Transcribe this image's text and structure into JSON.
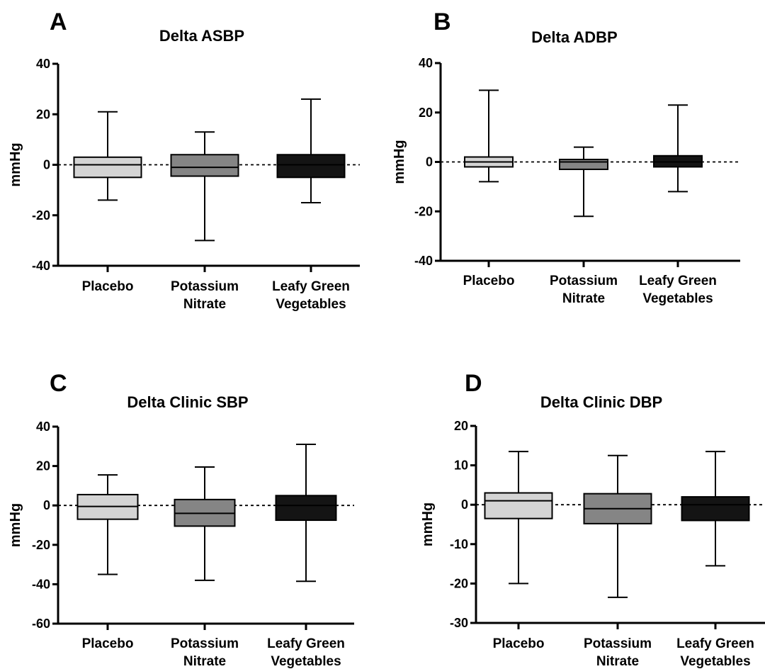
{
  "chart_data": [
    {
      "type": "box",
      "panel": "A",
      "title": "Delta ASBP",
      "ylabel": "mmHg",
      "ylim": [
        -40,
        40
      ],
      "yticks": [
        -40,
        -20,
        0,
        20,
        40
      ],
      "categories": [
        [
          "Placebo"
        ],
        [
          "Potassium",
          "Nitrate"
        ],
        [
          "Leafy Green",
          "Vegetables"
        ]
      ],
      "series": [
        {
          "min": -14,
          "q1": -5,
          "median": 0,
          "q3": 3,
          "max": 21,
          "color": "#d4d4d4"
        },
        {
          "min": -30,
          "q1": -4.5,
          "median": -1,
          "q3": 4,
          "max": 13,
          "color": "#858585"
        },
        {
          "min": -15,
          "q1": -5,
          "median": 0,
          "q3": 4,
          "max": 26,
          "color": "#141414"
        }
      ]
    },
    {
      "type": "box",
      "panel": "B",
      "title": "Delta ADBP",
      "ylabel": "mmHg",
      "ylim": [
        -40,
        40
      ],
      "yticks": [
        -40,
        -20,
        0,
        20,
        40
      ],
      "categories": [
        [
          "Placebo"
        ],
        [
          "Potassium",
          "Nitrate"
        ],
        [
          "Leafy Green",
          "Vegetables"
        ]
      ],
      "series": [
        {
          "min": -8,
          "q1": -2,
          "median": 0,
          "q3": 2,
          "max": 29,
          "color": "#d4d4d4"
        },
        {
          "min": -22,
          "q1": -3,
          "median": 0,
          "q3": 1,
          "max": 6,
          "color": "#858585"
        },
        {
          "min": -12,
          "q1": -2,
          "median": 0,
          "q3": 2.5,
          "max": 23,
          "color": "#141414"
        }
      ]
    },
    {
      "type": "box",
      "panel": "C",
      "title": "Delta Clinic SBP",
      "ylabel": "mmHg",
      "ylim": [
        -60,
        40
      ],
      "yticks": [
        -60,
        -40,
        -20,
        0,
        20,
        40
      ],
      "categories": [
        [
          "Placebo"
        ],
        [
          "Potassium",
          "Nitrate"
        ],
        [
          "Leafy Green",
          "Vegetables"
        ]
      ],
      "series": [
        {
          "min": -35,
          "q1": -7,
          "median": -0.5,
          "q3": 5.5,
          "max": 15.5,
          "color": "#d4d4d4"
        },
        {
          "min": -38,
          "q1": -10.5,
          "median": -4,
          "q3": 3,
          "max": 19.5,
          "color": "#858585"
        },
        {
          "min": -38.5,
          "q1": -7.5,
          "median": 0,
          "q3": 5,
          "max": 31,
          "color": "#141414"
        }
      ]
    },
    {
      "type": "box",
      "panel": "D",
      "title": "Delta Clinic DBP",
      "ylabel": "mmHg",
      "ylim": [
        -30,
        20
      ],
      "yticks": [
        -30,
        -20,
        -10,
        0,
        10,
        20
      ],
      "categories": [
        [
          "Placebo"
        ],
        [
          "Potassium",
          "Nitrate"
        ],
        [
          "Leafy Green",
          "Vegetables"
        ]
      ],
      "series": [
        {
          "min": -20,
          "q1": -3.5,
          "median": 1,
          "q3": 3,
          "max": 13.5,
          "color": "#d4d4d4"
        },
        {
          "min": -23.5,
          "q1": -4.8,
          "median": -1,
          "q3": 2.8,
          "max": 12.5,
          "color": "#858585"
        },
        {
          "min": -15.5,
          "q1": -4,
          "median": 0,
          "q3": 2,
          "max": 13.5,
          "color": "#141414"
        }
      ]
    }
  ]
}
